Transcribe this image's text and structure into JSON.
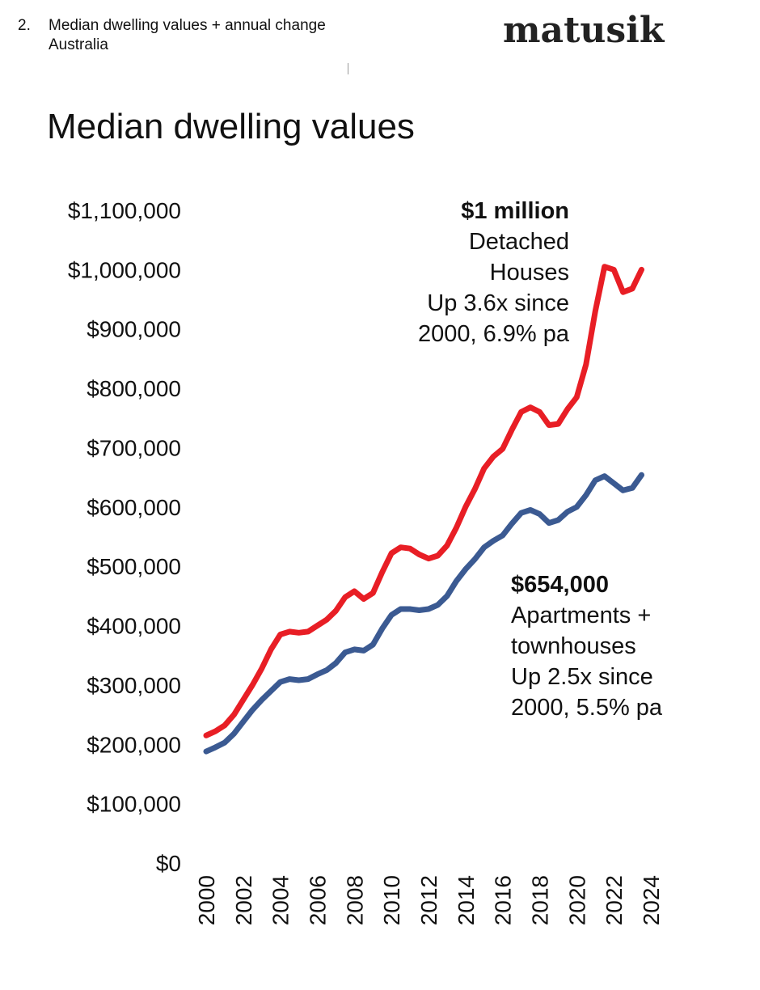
{
  "header": {
    "number": "2.",
    "title": "Median dwelling values + annual change",
    "subtitle": "Australia",
    "logo": "matusik"
  },
  "chart_data": {
    "type": "line",
    "title": "Median dwelling values",
    "xlabel": "",
    "ylabel": "",
    "ylim": [
      0,
      1100000
    ],
    "yticks": [
      "$0",
      "$100,000",
      "$200,000",
      "$300,000",
      "$400,000",
      "$500,000",
      "$600,000",
      "$700,000",
      "$800,000",
      "$900,000",
      "$1,000,000",
      "$1,100,000"
    ],
    "xticks": [
      "2000",
      "2002",
      "2004",
      "2006",
      "2008",
      "2010",
      "2012",
      "2014",
      "2016",
      "2018",
      "2020",
      "2022",
      "2024"
    ],
    "grid": false,
    "series": [
      {
        "color": "#e81e25",
        "points": [
          [
            2000.0,
            215000
          ],
          [
            2000.5,
            222000
          ],
          [
            2001.0,
            232000
          ],
          [
            2001.5,
            250000
          ],
          [
            2002.0,
            275000
          ],
          [
            2002.5,
            300000
          ],
          [
            2003.0,
            328000
          ],
          [
            2003.5,
            360000
          ],
          [
            2004.0,
            385000
          ],
          [
            2004.5,
            390000
          ],
          [
            2005.0,
            388000
          ],
          [
            2005.5,
            390000
          ],
          [
            2006.0,
            400000
          ],
          [
            2006.5,
            410000
          ],
          [
            2007.0,
            425000
          ],
          [
            2007.5,
            448000
          ],
          [
            2008.0,
            458000
          ],
          [
            2008.5,
            445000
          ],
          [
            2009.0,
            455000
          ],
          [
            2009.5,
            490000
          ],
          [
            2010.0,
            522000
          ],
          [
            2010.5,
            532000
          ],
          [
            2011.0,
            530000
          ],
          [
            2011.5,
            520000
          ],
          [
            2012.0,
            513000
          ],
          [
            2012.5,
            518000
          ],
          [
            2013.0,
            535000
          ],
          [
            2013.5,
            565000
          ],
          [
            2014.0,
            600000
          ],
          [
            2014.5,
            630000
          ],
          [
            2015.0,
            665000
          ],
          [
            2015.5,
            685000
          ],
          [
            2016.0,
            698000
          ],
          [
            2016.5,
            730000
          ],
          [
            2017.0,
            760000
          ],
          [
            2017.5,
            768000
          ],
          [
            2018.0,
            760000
          ],
          [
            2018.5,
            738000
          ],
          [
            2019.0,
            740000
          ],
          [
            2019.5,
            765000
          ],
          [
            2020.0,
            785000
          ],
          [
            2020.5,
            840000
          ],
          [
            2021.0,
            930000
          ],
          [
            2021.5,
            1005000
          ],
          [
            2022.0,
            1000000
          ],
          [
            2022.5,
            962000
          ],
          [
            2023.0,
            968000
          ],
          [
            2023.5,
            1000000
          ]
        ]
      },
      {
        "color": "#3b5a92",
        "points": [
          [
            2000.0,
            188000
          ],
          [
            2000.5,
            195000
          ],
          [
            2001.0,
            203000
          ],
          [
            2001.5,
            218000
          ],
          [
            2002.0,
            238000
          ],
          [
            2002.5,
            258000
          ],
          [
            2003.0,
            275000
          ],
          [
            2003.5,
            290000
          ],
          [
            2004.0,
            305000
          ],
          [
            2004.5,
            310000
          ],
          [
            2005.0,
            308000
          ],
          [
            2005.5,
            310000
          ],
          [
            2006.0,
            318000
          ],
          [
            2006.5,
            325000
          ],
          [
            2007.0,
            337000
          ],
          [
            2007.5,
            355000
          ],
          [
            2008.0,
            360000
          ],
          [
            2008.5,
            358000
          ],
          [
            2009.0,
            368000
          ],
          [
            2009.5,
            395000
          ],
          [
            2010.0,
            418000
          ],
          [
            2010.5,
            428000
          ],
          [
            2011.0,
            428000
          ],
          [
            2011.5,
            426000
          ],
          [
            2012.0,
            428000
          ],
          [
            2012.5,
            435000
          ],
          [
            2013.0,
            450000
          ],
          [
            2013.5,
            475000
          ],
          [
            2014.0,
            495000
          ],
          [
            2014.5,
            512000
          ],
          [
            2015.0,
            532000
          ],
          [
            2015.5,
            543000
          ],
          [
            2016.0,
            552000
          ],
          [
            2016.5,
            572000
          ],
          [
            2017.0,
            590000
          ],
          [
            2017.5,
            595000
          ],
          [
            2018.0,
            588000
          ],
          [
            2018.5,
            573000
          ],
          [
            2019.0,
            578000
          ],
          [
            2019.5,
            592000
          ],
          [
            2020.0,
            600000
          ],
          [
            2020.5,
            620000
          ],
          [
            2021.0,
            645000
          ],
          [
            2021.5,
            652000
          ],
          [
            2022.0,
            640000
          ],
          [
            2022.5,
            628000
          ],
          [
            2023.0,
            632000
          ],
          [
            2023.5,
            654000
          ]
        ]
      }
    ],
    "annotations": [
      {
        "lead": "$1 million",
        "lines": [
          "Detached",
          "Houses",
          "Up 3.6x since",
          "2000, 6.9% pa"
        ]
      },
      {
        "lead": "$654,000",
        "lines": [
          "Apartments +",
          "townhouses",
          "Up 2.5x since",
          "2000, 5.5% pa"
        ]
      }
    ]
  }
}
